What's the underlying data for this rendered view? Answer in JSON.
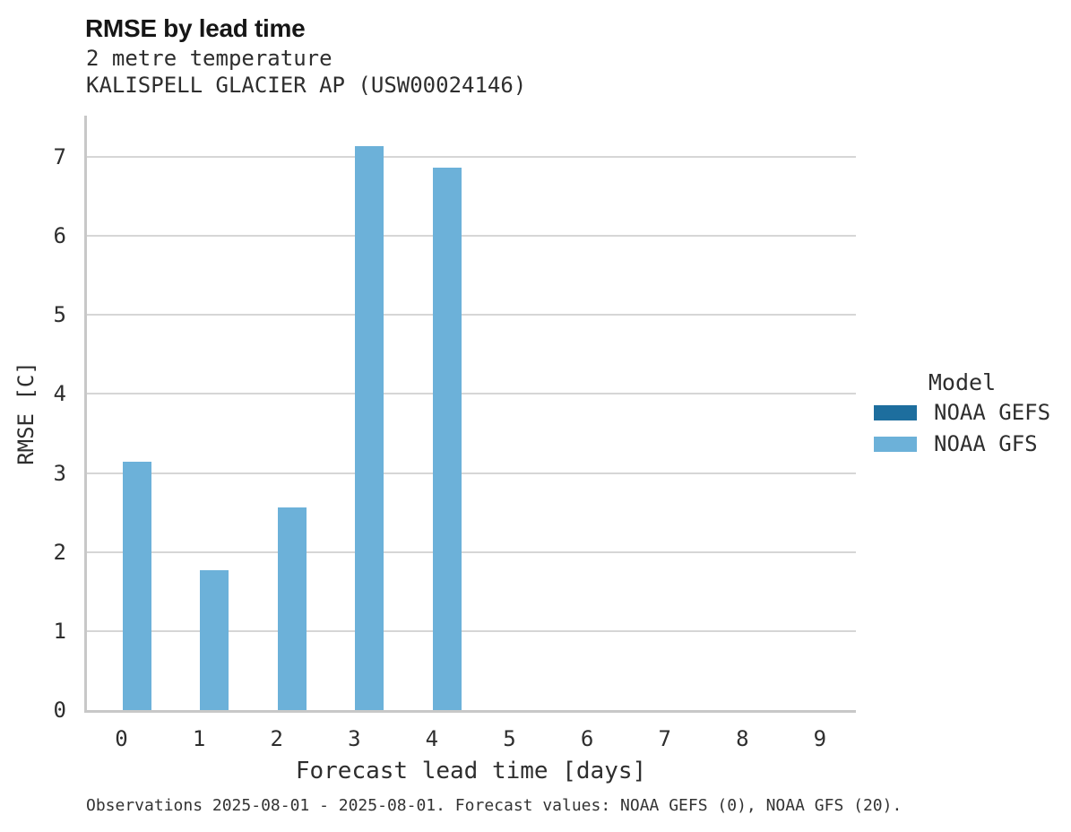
{
  "header": {
    "title": "RMSE by lead time"
  },
  "chart_data": {
    "type": "bar",
    "title": "RMSE by lead time",
    "subtitle": [
      "2 metre temperature",
      "KALISPELL GLACIER AP (USW00024146)"
    ],
    "xlabel": "Forecast lead time [days]",
    "ylabel": "RMSE [C]",
    "x_ticks": [
      "0",
      "1",
      "2",
      "3",
      "4",
      "5",
      "6",
      "7",
      "8",
      "9"
    ],
    "y_ticks": [
      "0",
      "1",
      "2",
      "3",
      "4",
      "5",
      "6",
      "7"
    ],
    "ylim": [
      0,
      7.52
    ],
    "grid": "horizontal gridlines on, no top/right spines",
    "categories": [
      0,
      1,
      2,
      3,
      4,
      5,
      6,
      7,
      8,
      9
    ],
    "series": [
      {
        "name": "NOAA GEFS",
        "color": "#1d6e9e",
        "values": [
          null,
          null,
          null,
          null,
          null,
          null,
          null,
          null,
          null,
          null
        ]
      },
      {
        "name": "NOAA GFS",
        "color": "#6cb1d9",
        "values": [
          3.14,
          1.77,
          2.56,
          7.14,
          6.86,
          null,
          null,
          null,
          null,
          null
        ]
      }
    ],
    "legend": {
      "title": "Model",
      "position": "right-center"
    },
    "footnote": "Observations 2025-08-01 - 2025-08-01. Forecast values: NOAA GEFS (0), NOAA GFS (20)."
  },
  "colors": {
    "background": "#ffffff",
    "grid": "#d6d6d6",
    "axis": "#c8c8c8",
    "bar_noaa_gefs": "#1d6e9e",
    "bar_noaa_gfs": "#6cb1d9",
    "text": "#2e2e2e",
    "title_text": "#161616"
  }
}
